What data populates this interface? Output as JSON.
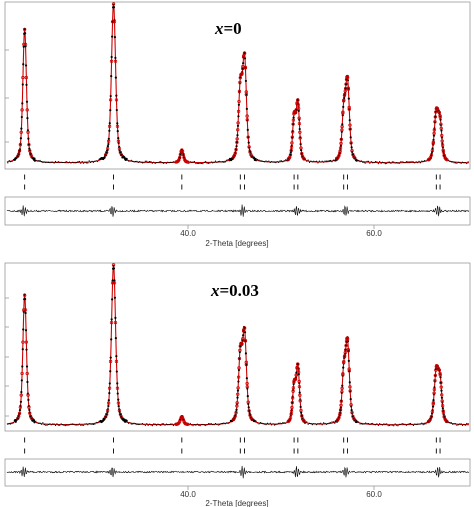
{
  "chart_data": [
    {
      "type": "line",
      "title_var": "x",
      "title_eq": "=0",
      "xlabel": "2-Theta [degrees]",
      "xticks": [
        "40.0",
        "60.0"
      ],
      "xlim": [
        20.0,
        69.7
      ],
      "ylim": [
        0,
        100
      ],
      "series": [
        {
          "kind": "observed",
          "color": "#000000"
        },
        {
          "kind": "calculated",
          "color": "#cc0000"
        }
      ],
      "peaks": [
        {
          "center": 22.1,
          "height": 84,
          "width": 0.26
        },
        {
          "center": 31.6,
          "height": 100,
          "width": 0.3
        },
        {
          "center": 38.9,
          "height": 8,
          "width": 0.22
        },
        {
          "center": 45.15,
          "height": 43,
          "width": 0.26
        },
        {
          "center": 45.6,
          "height": 63,
          "width": 0.28
        },
        {
          "center": 50.9,
          "height": 26,
          "width": 0.22
        },
        {
          "center": 51.3,
          "height": 36,
          "width": 0.24
        },
        {
          "center": 56.2,
          "height": 28,
          "width": 0.24
        },
        {
          "center": 56.6,
          "height": 50,
          "width": 0.28
        },
        {
          "center": 66.1,
          "height": 30,
          "width": 0.3
        },
        {
          "center": 66.5,
          "height": 22,
          "width": 0.26
        }
      ],
      "reflections_row1": [
        22.1,
        31.6,
        38.9,
        45.15,
        45.6,
        50.9,
        51.3,
        56.2,
        56.6,
        66.1,
        66.5
      ],
      "reflections_row2": [
        22.1,
        31.6,
        38.9,
        45.15,
        45.6,
        50.9,
        51.3,
        56.2,
        56.6,
        66.1,
        66.5
      ],
      "difference_features": [
        22.0,
        31.5,
        45.4,
        51.2,
        56.4,
        66.3
      ]
    },
    {
      "type": "line",
      "title_var": "x",
      "title_eq": "=0.03",
      "xlabel": "2-Theta [degrees]",
      "xticks": [
        "40.0",
        "60.0"
      ],
      "xlim": [
        20.0,
        69.7
      ],
      "ylim": [
        0,
        100
      ],
      "series": [
        {
          "kind": "observed",
          "color": "#000000"
        },
        {
          "kind": "calculated",
          "color": "#cc0000"
        }
      ],
      "peaks": [
        {
          "center": 22.1,
          "height": 81,
          "width": 0.26
        },
        {
          "center": 31.6,
          "height": 100,
          "width": 0.3
        },
        {
          "center": 38.9,
          "height": 5,
          "width": 0.22
        },
        {
          "center": 45.15,
          "height": 40,
          "width": 0.26
        },
        {
          "center": 45.6,
          "height": 55,
          "width": 0.28
        },
        {
          "center": 50.9,
          "height": 22,
          "width": 0.22
        },
        {
          "center": 51.3,
          "height": 35,
          "width": 0.24
        },
        {
          "center": 56.2,
          "height": 28,
          "width": 0.24
        },
        {
          "center": 56.6,
          "height": 50,
          "width": 0.28
        },
        {
          "center": 66.1,
          "height": 32,
          "width": 0.3
        },
        {
          "center": 66.5,
          "height": 24,
          "width": 0.26
        }
      ],
      "reflections_row1": [
        22.1,
        31.6,
        38.9,
        45.15,
        45.6,
        50.9,
        51.3,
        56.2,
        56.6,
        66.1,
        66.5
      ],
      "reflections_row2": [
        22.1,
        31.6,
        38.9,
        45.15,
        45.6,
        50.9,
        51.3,
        56.2,
        56.6,
        66.1,
        66.5
      ],
      "difference_features": [
        22.0,
        31.5,
        45.4,
        51.2,
        56.4,
        66.3
      ]
    }
  ]
}
